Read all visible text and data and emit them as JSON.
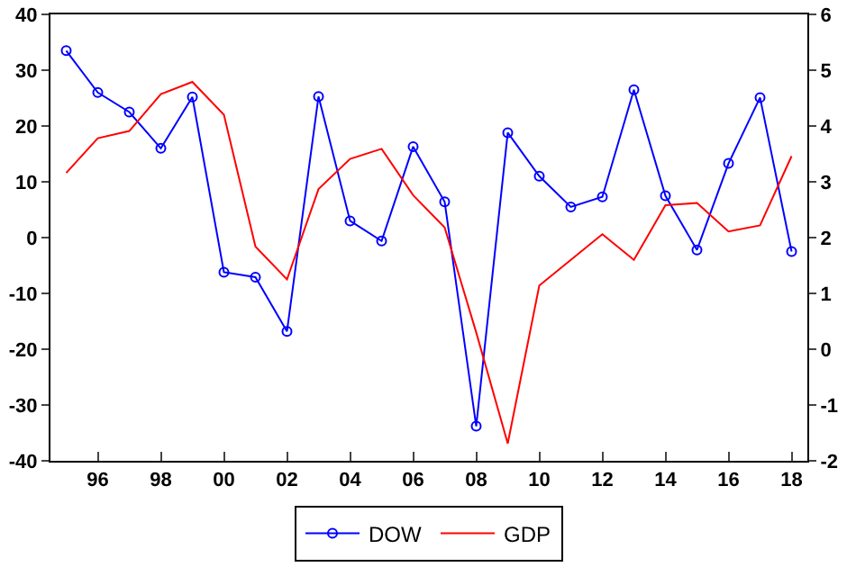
{
  "chart_data": {
    "type": "line",
    "x": [
      1995,
      1996,
      1997,
      1998,
      1999,
      2000,
      2001,
      2002,
      2003,
      2004,
      2005,
      2006,
      2007,
      2008,
      2009,
      2010,
      2011,
      2012,
      2013,
      2014,
      2015,
      2016,
      2017,
      2018
    ],
    "series": [
      {
        "name": "DOW",
        "color": "#0000ff",
        "marker": "circle",
        "values": [
          33.5,
          26,
          22.5,
          16,
          25.2,
          -6.2,
          -7.1,
          -16.8,
          25.3,
          3,
          -0.6,
          16.3,
          6.4,
          -33.8,
          18.8,
          11,
          5.5,
          7.3,
          26.5,
          7.5,
          -2.2,
          13.3,
          25.1,
          -2.5
        ]
      },
      {
        "name": "GDP",
        "color": "#ff0000",
        "axis": "y2",
        "marker": "none",
        "values": [
          3.16,
          3.78,
          3.91,
          4.57,
          4.79,
          4.2,
          1.84,
          1.25,
          2.87,
          3.41,
          3.59,
          2.76,
          2.18,
          0.3,
          -1.69,
          1.14,
          1.6,
          2.06,
          1.6,
          2.58,
          2.62,
          2.11,
          2.22,
          3.46
        ]
      }
    ],
    "xlim": [
      1994.5,
      2018.5
    ],
    "xticks": [
      {
        "value": 1996,
        "label": "96"
      },
      {
        "value": 1998,
        "label": "98"
      },
      {
        "value": 2000,
        "label": "00"
      },
      {
        "value": 2002,
        "label": "02"
      },
      {
        "value": 2004,
        "label": "04"
      },
      {
        "value": 2006,
        "label": "06"
      },
      {
        "value": 2008,
        "label": "08"
      },
      {
        "value": 2010,
        "label": "10"
      },
      {
        "value": 2012,
        "label": "12"
      },
      {
        "value": 2014,
        "label": "14"
      },
      {
        "value": 2016,
        "label": "16"
      },
      {
        "value": 2018,
        "label": "18"
      }
    ],
    "ylim": [
      -40,
      40
    ],
    "yticks": [
      -40,
      -30,
      -20,
      -10,
      0,
      10,
      20,
      30,
      40
    ],
    "y2lim": [
      -2,
      6
    ],
    "y2ticks": [
      -2,
      -1,
      0,
      1,
      2,
      3,
      4,
      5,
      6
    ],
    "grid": false,
    "legend": "bottom",
    "line_style": "solid"
  }
}
